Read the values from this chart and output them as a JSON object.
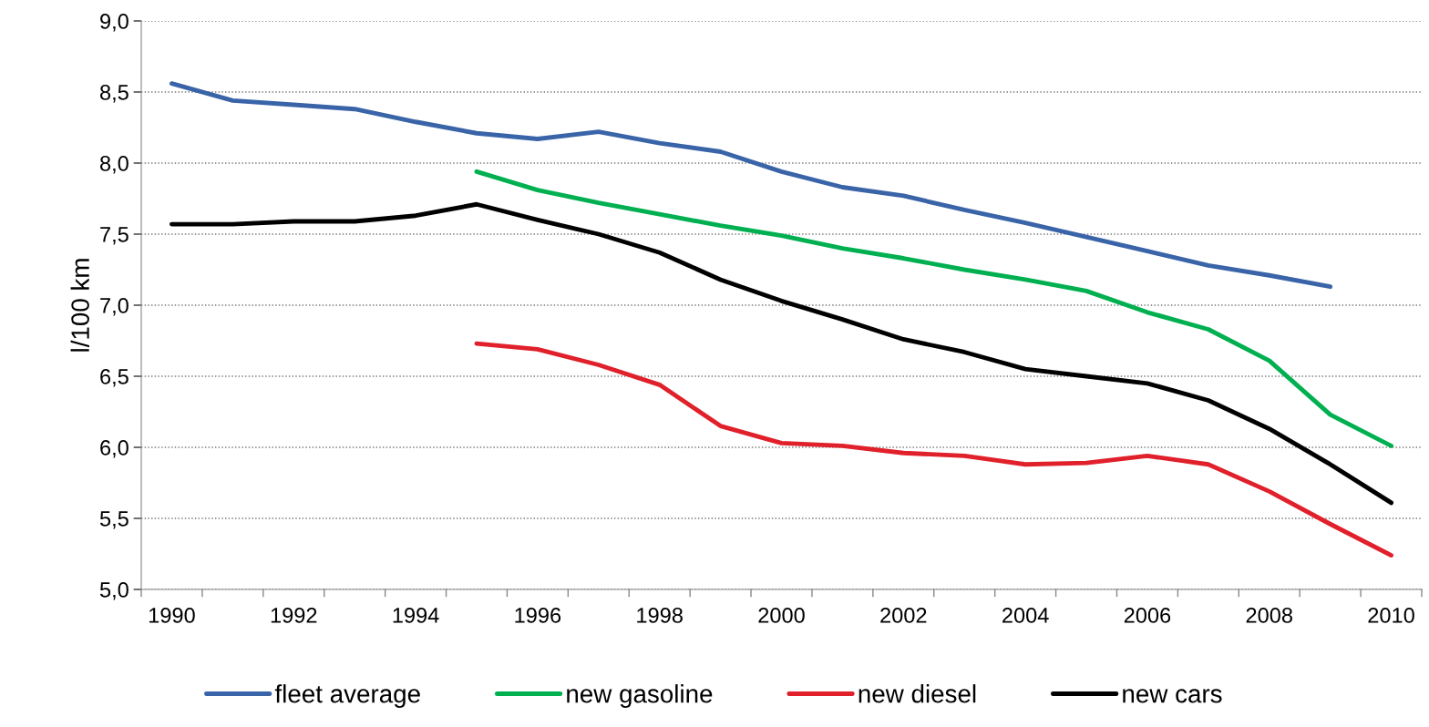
{
  "chart_data": {
    "type": "line",
    "ylabel": "l/100 km",
    "categories": [
      "1990",
      null,
      "1992",
      null,
      "1994",
      null,
      "1996",
      null,
      "1998",
      null,
      "2000",
      null,
      "2002",
      null,
      "2004",
      null,
      "2006",
      null,
      "2008",
      null,
      "2010"
    ],
    "series": [
      {
        "name": "fleet average",
        "color": "#3a64a8",
        "values": [
          8.56,
          8.44,
          8.41,
          8.38,
          8.29,
          8.21,
          8.17,
          8.22,
          8.14,
          8.08,
          7.94,
          7.83,
          7.77,
          7.67,
          7.58,
          7.48,
          7.38,
          7.28,
          7.21,
          7.13,
          null
        ]
      },
      {
        "name": "new gasoline",
        "color": "#00b050",
        "values": [
          null,
          null,
          null,
          null,
          null,
          7.94,
          7.81,
          7.72,
          7.64,
          7.56,
          7.49,
          7.4,
          7.33,
          7.25,
          7.18,
          7.1,
          6.95,
          6.83,
          6.61,
          6.23,
          6.01
        ]
      },
      {
        "name": "new diesel",
        "color": "#e0202a",
        "values": [
          null,
          null,
          null,
          null,
          null,
          6.73,
          6.69,
          6.58,
          6.44,
          6.15,
          6.03,
          6.01,
          5.96,
          5.94,
          5.88,
          5.89,
          5.94,
          5.88,
          5.69,
          5.46,
          5.24
        ]
      },
      {
        "name": "new cars",
        "color": "#000000",
        "values": [
          7.57,
          7.57,
          7.59,
          7.59,
          7.63,
          7.71,
          7.6,
          7.5,
          7.37,
          7.18,
          7.03,
          6.9,
          6.76,
          6.67,
          6.55,
          6.5,
          6.45,
          6.33,
          6.13,
          5.88,
          5.61
        ]
      }
    ],
    "ylim": [
      5,
      9
    ],
    "yticks": [
      {
        "value": 5,
        "label": "5,0"
      },
      {
        "value": 5.5,
        "label": "5,5"
      },
      {
        "value": 6,
        "label": "6,0"
      },
      {
        "value": 6.5,
        "label": "6,5"
      },
      {
        "value": 7,
        "label": "7,0"
      },
      {
        "value": 7.5,
        "label": "7,5"
      },
      {
        "value": 8,
        "label": "8,0"
      },
      {
        "value": 8.5,
        "label": "8,5"
      },
      {
        "value": 9,
        "label": "9,0"
      }
    ],
    "grid": "y",
    "legend": "bottom",
    "marker": "none",
    "line_style": "solid"
  }
}
